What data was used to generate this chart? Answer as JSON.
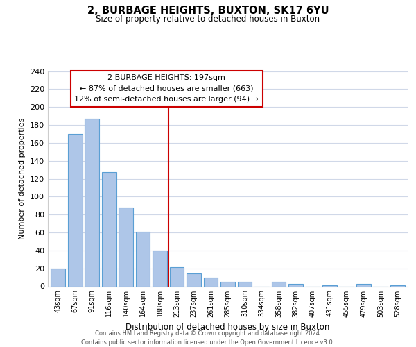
{
  "title": "2, BURBAGE HEIGHTS, BUXTON, SK17 6YU",
  "subtitle": "Size of property relative to detached houses in Buxton",
  "xlabel": "Distribution of detached houses by size in Buxton",
  "ylabel": "Number of detached properties",
  "bar_labels": [
    "43sqm",
    "67sqm",
    "91sqm",
    "116sqm",
    "140sqm",
    "164sqm",
    "188sqm",
    "213sqm",
    "237sqm",
    "261sqm",
    "285sqm",
    "310sqm",
    "334sqm",
    "358sqm",
    "382sqm",
    "407sqm",
    "431sqm",
    "455sqm",
    "479sqm",
    "503sqm",
    "528sqm"
  ],
  "bar_heights": [
    20,
    170,
    187,
    127,
    88,
    61,
    40,
    21,
    14,
    10,
    5,
    5,
    0,
    5,
    3,
    0,
    1,
    0,
    3,
    0,
    1
  ],
  "bar_color": "#aec6e8",
  "bar_edge_color": "#5a9fd4",
  "vline_x": 6.5,
  "vline_color": "#cc0000",
  "annotation_lines": [
    "2 BURBAGE HEIGHTS: 197sqm",
    "← 87% of detached houses are smaller (663)",
    "12% of semi-detached houses are larger (94) →"
  ],
  "annotation_box_color": "#ffffff",
  "annotation_box_edge": "#cc0000",
  "ylim": [
    0,
    240
  ],
  "yticks": [
    0,
    20,
    40,
    60,
    80,
    100,
    120,
    140,
    160,
    180,
    200,
    220,
    240
  ],
  "footer_line1": "Contains HM Land Registry data © Crown copyright and database right 2024.",
  "footer_line2": "Contains public sector information licensed under the Open Government Licence v3.0.",
  "bg_color": "#ffffff",
  "grid_color": "#d0d8e8"
}
